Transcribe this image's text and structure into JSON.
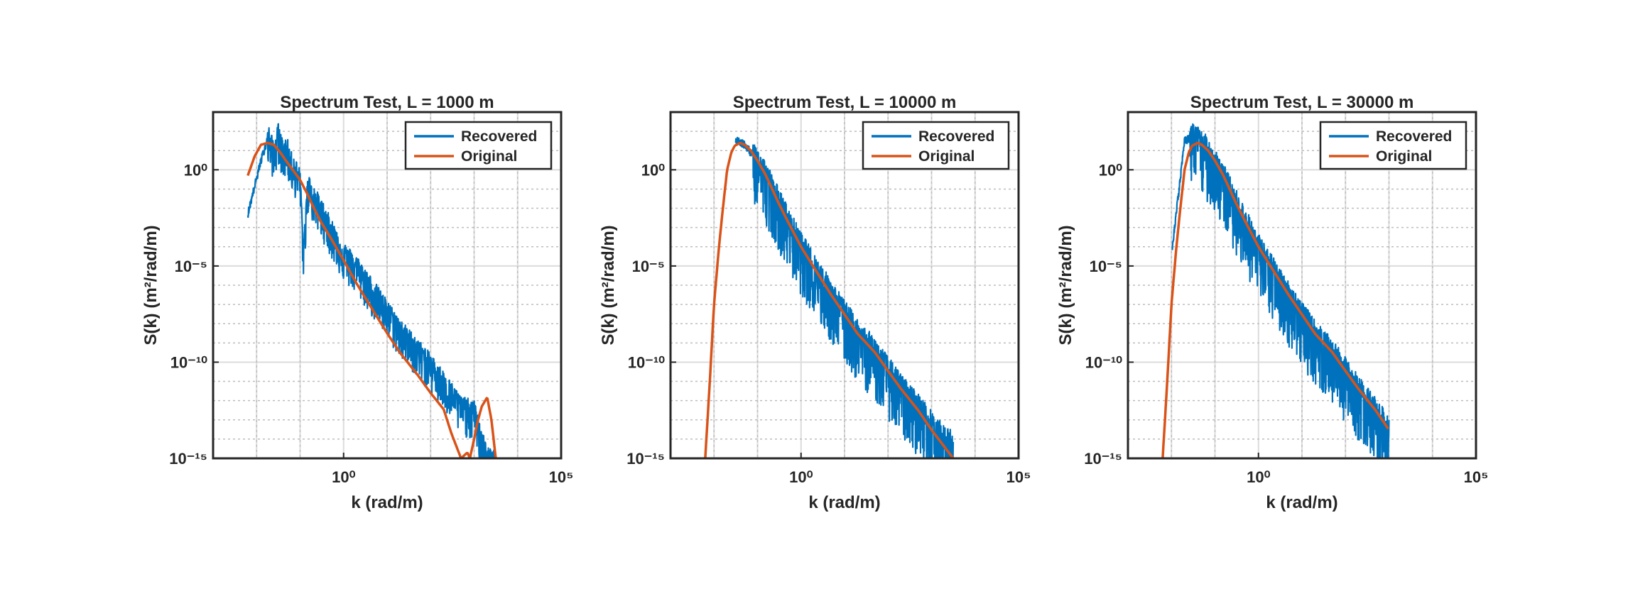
{
  "colors": {
    "recovered": "#0072BD",
    "original": "#D95319",
    "axis": "#262626",
    "grid": "#dcdcdc",
    "minor_grid": "#bdbdbd",
    "background": "#ffffff"
  },
  "chart_data": [
    {
      "type": "line",
      "title": "Spectrum Test, L = 1000 m",
      "xlabel": "k (rad/m)",
      "ylabel": "S(k) (m²/rad/m)",
      "xscale": "log",
      "yscale": "log",
      "xlim": [
        0.001,
        100000
      ],
      "ylim": [
        1e-15,
        1000.0
      ],
      "x_ticks": [
        {
          "value": 1,
          "label": "10⁰"
        },
        {
          "value": 100000,
          "label": "10⁵"
        }
      ],
      "y_ticks": [
        {
          "value": 1e-15,
          "label": "10⁻¹⁵"
        },
        {
          "value": 1e-10,
          "label": "10⁻¹⁰"
        },
        {
          "value": 1e-05,
          "label": "10⁻⁵"
        },
        {
          "value": 1,
          "label": "10⁰"
        }
      ],
      "grid": true,
      "minor_grid": true,
      "box": true,
      "legend": {
        "position": "top-right",
        "entries": [
          "Recovered",
          "Original"
        ]
      },
      "series": [
        {
          "name": "Original",
          "x": [
            0.00628,
            0.009,
            0.0126,
            0.018,
            0.025,
            0.035,
            0.05,
            0.07,
            0.1,
            0.15,
            0.2,
            0.3,
            0.5,
            0.7,
            1,
            2,
            5,
            10,
            20,
            50,
            100,
            200,
            300,
            500,
            700,
            800,
            1000,
            1200,
            1500,
            2000,
            2500,
            3142
          ],
          "y": [
            0.5,
            5,
            20,
            25,
            20,
            8,
            2.5,
            0.9,
            0.3,
            0.05,
            0.012,
            0.002,
            0.0003,
            8e-05,
            2e-05,
            1.2e-06,
            4e-08,
            3.2e-09,
            3e-10,
            2.2e-11,
            2.5e-12,
            3.5e-13,
            2e-14,
            1e-15,
            2e-15,
            1e-15,
            1e-14,
            8e-14,
            5e-13,
            1.5e-12,
            1e-13,
            1e-15
          ]
        },
        {
          "name": "Recovered",
          "x": [
            0.00628,
            0.0126,
            0.0188,
            0.025,
            0.0314,
            0.04,
            0.05,
            0.06,
            0.08,
            0.1,
            0.12,
            0.15,
            0.2,
            0.3,
            0.5,
            1,
            2,
            5,
            10,
            20,
            50,
            100,
            200,
            500,
            1000,
            1500,
            2000,
            2500,
            3142
          ],
          "y": [
            0.005,
            3,
            60,
            8,
            80,
            10,
            15,
            3,
            1,
            0.3,
            5e-05,
            0.2,
            0.05,
            0.01,
            0.001,
            5e-05,
            1e-05,
            5e-07,
            5e-08,
            5e-09,
            5e-10,
            8e-11,
            1e-11,
            5e-13,
            3e-13,
            1e-14,
            1e-15,
            1e-15,
            1e-15
          ],
          "noise_band": {
            "lower_factor": 0.03,
            "upper_factor": 3.5
          }
        }
      ]
    },
    {
      "type": "line",
      "title": "Spectrum Test, L = 10000 m",
      "xlabel": "k (rad/m)",
      "ylabel": "S(k) (m²/rad/m)",
      "xscale": "log",
      "yscale": "log",
      "xlim": [
        0.001,
        100000
      ],
      "ylim": [
        1e-15,
        1000.0
      ],
      "x_ticks": [
        {
          "value": 1,
          "label": "10⁰"
        },
        {
          "value": 100000,
          "label": "10⁵"
        }
      ],
      "y_ticks": [
        {
          "value": 1e-15,
          "label": "10⁻¹⁵"
        },
        {
          "value": 1e-10,
          "label": "10⁻¹⁰"
        },
        {
          "value": 1e-05,
          "label": "10⁻⁵"
        },
        {
          "value": 1,
          "label": "10⁰"
        }
      ],
      "grid": true,
      "minor_grid": true,
      "box": true,
      "legend": {
        "position": "top-right",
        "entries": [
          "Recovered",
          "Original"
        ]
      },
      "series": [
        {
          "name": "Original",
          "x": [
            0.00628,
            0.008,
            0.01,
            0.013,
            0.016,
            0.02,
            0.025,
            0.03,
            0.04,
            0.05,
            0.07,
            0.1,
            0.15,
            0.2,
            0.3,
            0.5,
            1,
            2,
            5,
            10,
            20,
            50,
            100,
            200,
            500,
            1000,
            3142
          ],
          "y": [
            1e-15,
            1e-11,
            1e-07,
            0.0001,
            0.01,
            1,
            8,
            18,
            25,
            20,
            10,
            3,
            0.6,
            0.15,
            0.02,
            0.002,
            0.0001,
            8e-06,
            3e-07,
            3e-08,
            3e-09,
            3.2e-10,
            3.5e-11,
            4e-12,
            3e-13,
            3e-14,
            1e-15
          ]
        },
        {
          "name": "Recovered",
          "x": [
            0.0314,
            0.05,
            0.1,
            0.2,
            0.5,
            1,
            2,
            5,
            10,
            20,
            50,
            100,
            200,
            500,
            1000,
            2000,
            3142
          ],
          "y": [
            40,
            20,
            3,
            0.15,
            0.002,
            0.0001,
            8e-06,
            3e-07,
            3e-08,
            3e-09,
            3.2e-10,
            3.5e-11,
            4e-12,
            4e-13,
            5e-14,
            8e-15,
            5e-15
          ],
          "noise_band": {
            "lower_factor": 0.003,
            "upper_factor": 6
          }
        }
      ]
    },
    {
      "type": "line",
      "title": "Spectrum Test, L = 30000 m",
      "xlabel": "k (rad/m)",
      "ylabel": "S(k) (m²/rad/m)",
      "xscale": "log",
      "yscale": "log",
      "xlim": [
        0.001,
        100000
      ],
      "ylim": [
        1e-15,
        1000.0
      ],
      "x_ticks": [
        {
          "value": 1,
          "label": "10⁰"
        },
        {
          "value": 100000,
          "label": "10⁵"
        }
      ],
      "y_ticks": [
        {
          "value": 1e-15,
          "label": "10⁻¹⁵"
        },
        {
          "value": 1e-10,
          "label": "10⁻¹⁰"
        },
        {
          "value": 1e-05,
          "label": "10⁻⁵"
        },
        {
          "value": 1,
          "label": "10⁰"
        }
      ],
      "grid": true,
      "minor_grid": true,
      "box": true,
      "legend": {
        "position": "top-right",
        "entries": [
          "Recovered",
          "Original"
        ]
      },
      "series": [
        {
          "name": "Original",
          "x": [
            0.00628,
            0.008,
            0.01,
            0.013,
            0.016,
            0.02,
            0.025,
            0.03,
            0.04,
            0.05,
            0.07,
            0.1,
            0.15,
            0.2,
            0.3,
            0.5,
            1,
            2,
            5,
            10,
            20,
            50,
            100,
            200,
            500,
            1000
          ],
          "y": [
            1e-15,
            1e-11,
            1e-07,
            0.0001,
            0.01,
            1,
            8,
            18,
            25,
            20,
            10,
            3,
            0.6,
            0.15,
            0.02,
            0.002,
            0.0001,
            8e-06,
            3e-07,
            3e-08,
            3e-09,
            3.2e-10,
            3.5e-11,
            4e-12,
            3e-13,
            3e-14
          ]
        },
        {
          "name": "Recovered",
          "x": [
            0.0105,
            0.02,
            0.03,
            0.05,
            0.1,
            0.2,
            0.5,
            1,
            2,
            5,
            10,
            20,
            50,
            100,
            200,
            500,
            1000
          ],
          "y": [
            0.0001,
            30,
            60,
            25,
            3,
            0.15,
            0.002,
            0.0001,
            8e-06,
            3e-07,
            3e-08,
            3e-09,
            3.2e-10,
            3.5e-11,
            4e-12,
            3e-13,
            3e-14
          ],
          "noise_band": {
            "lower_factor": 0.002,
            "upper_factor": 5
          }
        }
      ]
    }
  ]
}
